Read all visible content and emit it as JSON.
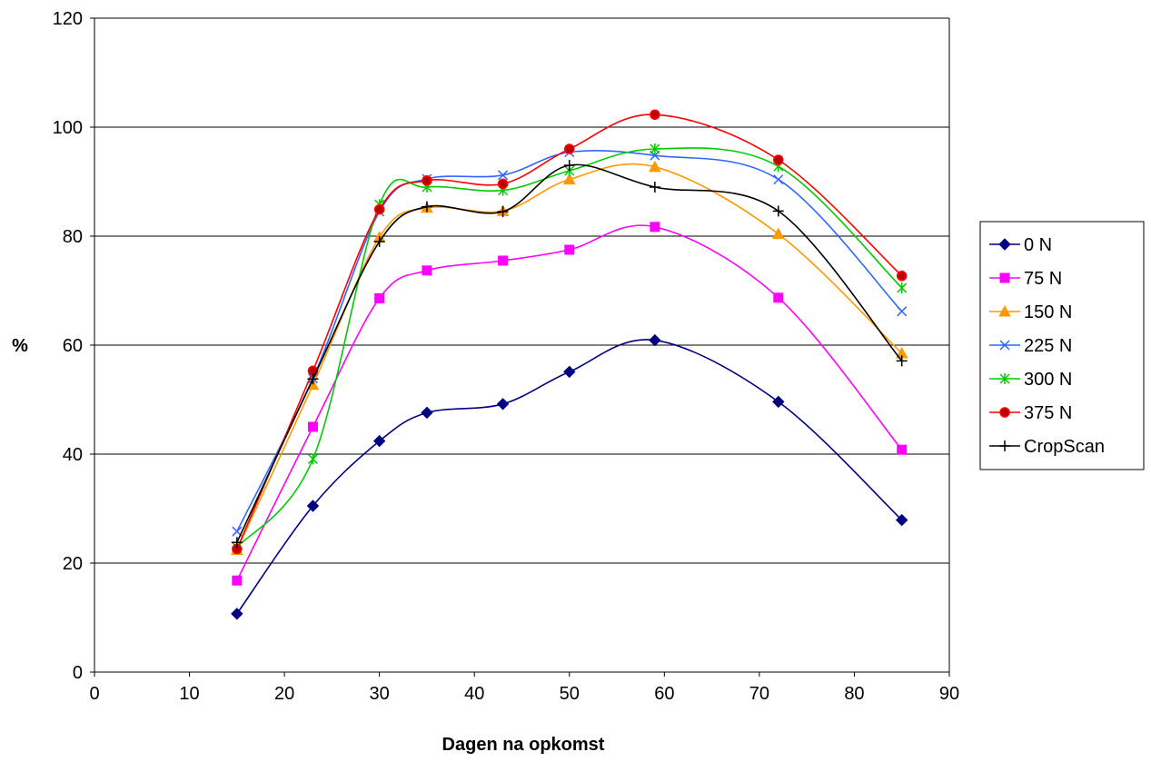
{
  "chart_data": {
    "type": "line",
    "smooth": true,
    "title": "",
    "xlabel": "Dagen na opkomst",
    "ylabel": "%",
    "xlim": [
      0,
      90
    ],
    "ylim": [
      0,
      120
    ],
    "xticks": [
      0,
      10,
      20,
      30,
      40,
      50,
      60,
      70,
      80,
      90
    ],
    "yticks": [
      0,
      20,
      40,
      60,
      80,
      100,
      120
    ],
    "grid": "horizontal major gridlines",
    "legend_position": "right",
    "x": [
      15,
      23,
      30,
      35,
      43,
      50,
      59,
      72,
      85
    ],
    "series": [
      {
        "name": "0 N",
        "color": "#000080",
        "marker": "diamond",
        "values": [
          10.7,
          30.5,
          42.4,
          47.6,
          49.2,
          55.1,
          60.9,
          49.6,
          27.9
        ]
      },
      {
        "name": "75 N",
        "color": "#ff00ff",
        "marker": "square",
        "values": [
          16.8,
          45.0,
          68.6,
          73.7,
          75.5,
          77.5,
          81.7,
          68.7,
          40.8
        ]
      },
      {
        "name": "150 N",
        "color": "#ff9900",
        "marker": "triangle",
        "values": [
          22.4,
          52.7,
          79.8,
          85.2,
          84.6,
          90.4,
          92.7,
          80.4,
          58.5
        ]
      },
      {
        "name": "225 N",
        "color": "#3366ff",
        "marker": "x",
        "values": [
          25.8,
          53.9,
          84.5,
          90.5,
          91.2,
          95.4,
          94.8,
          90.4,
          66.2
        ]
      },
      {
        "name": "300 N",
        "color": "#00cc00",
        "marker": "asterisk",
        "values": [
          22.9,
          39.1,
          85.8,
          89.0,
          88.4,
          92.0,
          96.0,
          92.8,
          70.5
        ]
      },
      {
        "name": "375 N",
        "color": "#ff0000",
        "marker": "circle",
        "values": [
          22.6,
          55.3,
          84.9,
          90.2,
          89.6,
          96.0,
          102.3,
          94.0,
          72.7
        ]
      },
      {
        "name": "CropScan",
        "color": "#000000",
        "marker": "plus",
        "values": [
          23.8,
          53.8,
          79.0,
          85.4,
          84.5,
          93.0,
          89.0,
          84.6,
          57.1
        ]
      }
    ]
  }
}
